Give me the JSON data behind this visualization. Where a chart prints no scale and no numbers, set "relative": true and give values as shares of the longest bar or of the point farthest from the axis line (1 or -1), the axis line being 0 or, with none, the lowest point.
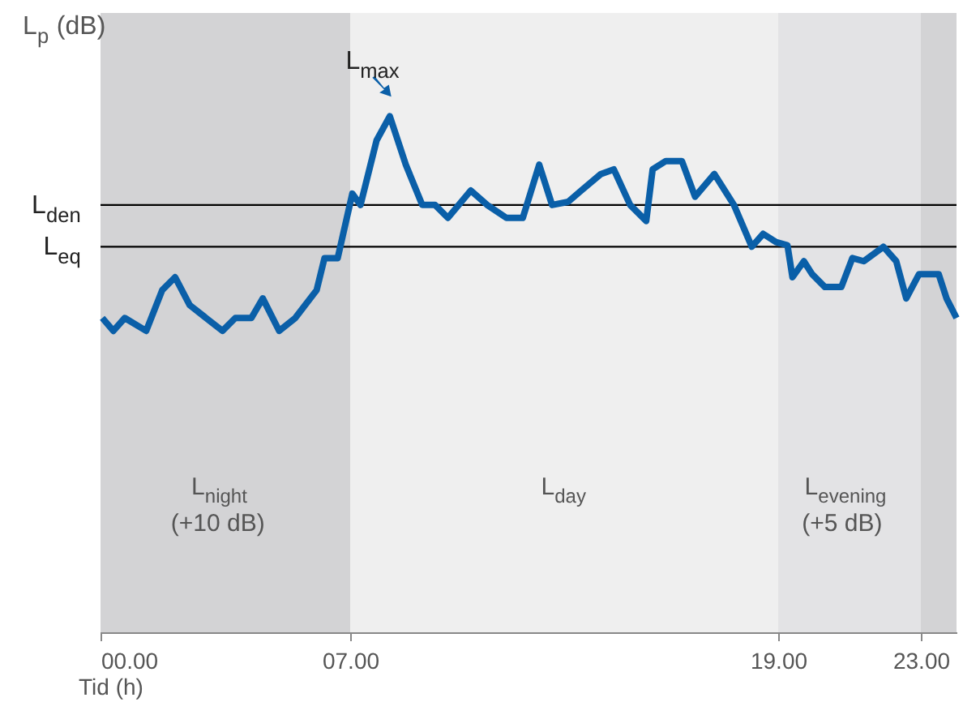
{
  "chart_data": {
    "type": "line",
    "relative": true,
    "xlabel": "Tid (h)",
    "ylabel": "L$_{p}$ (dB)",
    "tick_labels": "x",
    "xlim": [
      0,
      24
    ],
    "xticks": [
      {
        "value": 0,
        "label": "00.00"
      },
      {
        "value": 7,
        "label": "07.00"
      },
      {
        "value": 19,
        "label": "19.00"
      },
      {
        "value": 23,
        "label": "23.00"
      }
    ],
    "x": [
      0.05,
      0.36,
      0.68,
      1.28,
      1.73,
      2.09,
      2.5,
      2.96,
      3.42,
      3.78,
      4.23,
      4.55,
      5.01,
      5.46,
      6.06,
      6.28,
      6.65,
      7.06,
      7.29,
      7.74,
      8.11,
      8.56,
      9.02,
      9.38,
      9.74,
      10.38,
      10.84,
      11.38,
      11.84,
      12.3,
      12.66,
      13.11,
      13.48,
      14.03,
      14.39,
      14.85,
      15.3,
      15.48,
      15.85,
      16.3,
      16.67,
      17.21,
      17.76,
      18.26,
      18.58,
      18.94,
      19.26,
      19.4,
      19.72,
      19.95,
      20.31,
      20.77,
      21.08,
      21.4,
      21.95,
      22.31,
      22.59,
      22.95,
      23.5,
      23.72,
      24
    ],
    "series": [
      {
        "color": "#0a5fa8",
        "values": [
          0.609,
          0.584,
          0.609,
          0.584,
          0.663,
          0.688,
          0.634,
          0.609,
          0.584,
          0.609,
          0.609,
          0.647,
          0.584,
          0.609,
          0.663,
          0.725,
          0.725,
          0.85,
          0.828,
          0.953,
          1,
          0.906,
          0.828,
          0.828,
          0.803,
          0.856,
          0.828,
          0.803,
          0.803,
          0.906,
          0.828,
          0.834,
          0.856,
          0.888,
          0.897,
          0.828,
          0.797,
          0.897,
          0.913,
          0.913,
          0.844,
          0.888,
          0.828,
          0.747,
          0.772,
          0.756,
          0.75,
          0.688,
          0.719,
          0.694,
          0.669,
          0.669,
          0.725,
          0.719,
          0.747,
          0.719,
          0.647,
          0.694,
          0.694,
          0.647,
          0.609
        ]
      }
    ],
    "ref_lines": [
      {
        "axis": "y",
        "value": 0.828,
        "label": "L$_{den}$",
        "color": "#000000"
      },
      {
        "axis": "y",
        "value": 0.747,
        "label": "L$_{eq}$",
        "color": "#000000"
      }
    ],
    "bands": [
      {
        "axis": "x",
        "from": 0,
        "to": 7,
        "label": "L$_{night}$\n(+10 dB)",
        "color": "#d3d3d5"
      },
      {
        "axis": "x",
        "from": 7,
        "to": 19,
        "label": "L$_{day}$",
        "color": "#efefef"
      },
      {
        "axis": "x",
        "from": 19,
        "to": 23,
        "label": "L$_{evening}$\n(+5 dB)",
        "color": "#e3e3e5"
      },
      {
        "axis": "x",
        "from": 23,
        "to": 24,
        "label": null,
        "color": "#d3d3d5"
      }
    ],
    "annotations": [
      {
        "text": "L$_{max}$",
        "x": 8.11,
        "y": 1
      }
    ]
  }
}
